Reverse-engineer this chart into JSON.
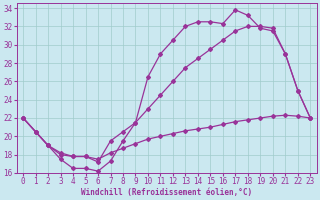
{
  "xlabel": "Windchill (Refroidissement éolien,°C)",
  "background_color": "#cbe8f0",
  "grid_color": "#a0cccc",
  "line_color": "#993399",
  "xlim": [
    -0.5,
    23.5
  ],
  "ylim": [
    16,
    34.5
  ],
  "yticks": [
    16,
    18,
    20,
    22,
    24,
    26,
    28,
    30,
    32,
    34
  ],
  "xticks": [
    0,
    1,
    2,
    3,
    4,
    5,
    6,
    7,
    8,
    9,
    10,
    11,
    12,
    13,
    14,
    15,
    16,
    17,
    18,
    19,
    20,
    21,
    22,
    23
  ],
  "line1_x": [
    0,
    1,
    2,
    3,
    4,
    5,
    6,
    7,
    8,
    9,
    10,
    11,
    12,
    13,
    14,
    15,
    16,
    17,
    18,
    19,
    20,
    21,
    22,
    23
  ],
  "line1_y": [
    22,
    20.5,
    19,
    17.5,
    16.5,
    16.5,
    16.2,
    17.3,
    19.5,
    21.5,
    26.5,
    29,
    30.5,
    32,
    32.5,
    32.5,
    32.3,
    33.8,
    33.2,
    31.8,
    31.5,
    29,
    25,
    22
  ],
  "line2_x": [
    0,
    1,
    2,
    3,
    4,
    5,
    6,
    7,
    8,
    9,
    10,
    11,
    12,
    13,
    14,
    15,
    16,
    17,
    18,
    19,
    20,
    21,
    22,
    23
  ],
  "line2_y": [
    22,
    20.5,
    19,
    18.0,
    17.8,
    17.8,
    17.2,
    19.5,
    20.5,
    21.5,
    23,
    24.5,
    26,
    27.5,
    28.5,
    29.5,
    30.5,
    31.5,
    32,
    32,
    31.8,
    29,
    25,
    22
  ],
  "line3_x": [
    0,
    1,
    2,
    3,
    4,
    5,
    6,
    7,
    8,
    9,
    10,
    11,
    12,
    13,
    14,
    15,
    16,
    17,
    18,
    19,
    20,
    21,
    22,
    23
  ],
  "line3_y": [
    22,
    20.5,
    19,
    18.2,
    17.8,
    17.8,
    17.5,
    18.2,
    18.7,
    19.2,
    19.7,
    20.0,
    20.3,
    20.6,
    20.8,
    21.0,
    21.3,
    21.6,
    21.8,
    22.0,
    22.2,
    22.3,
    22.2,
    22.0
  ]
}
